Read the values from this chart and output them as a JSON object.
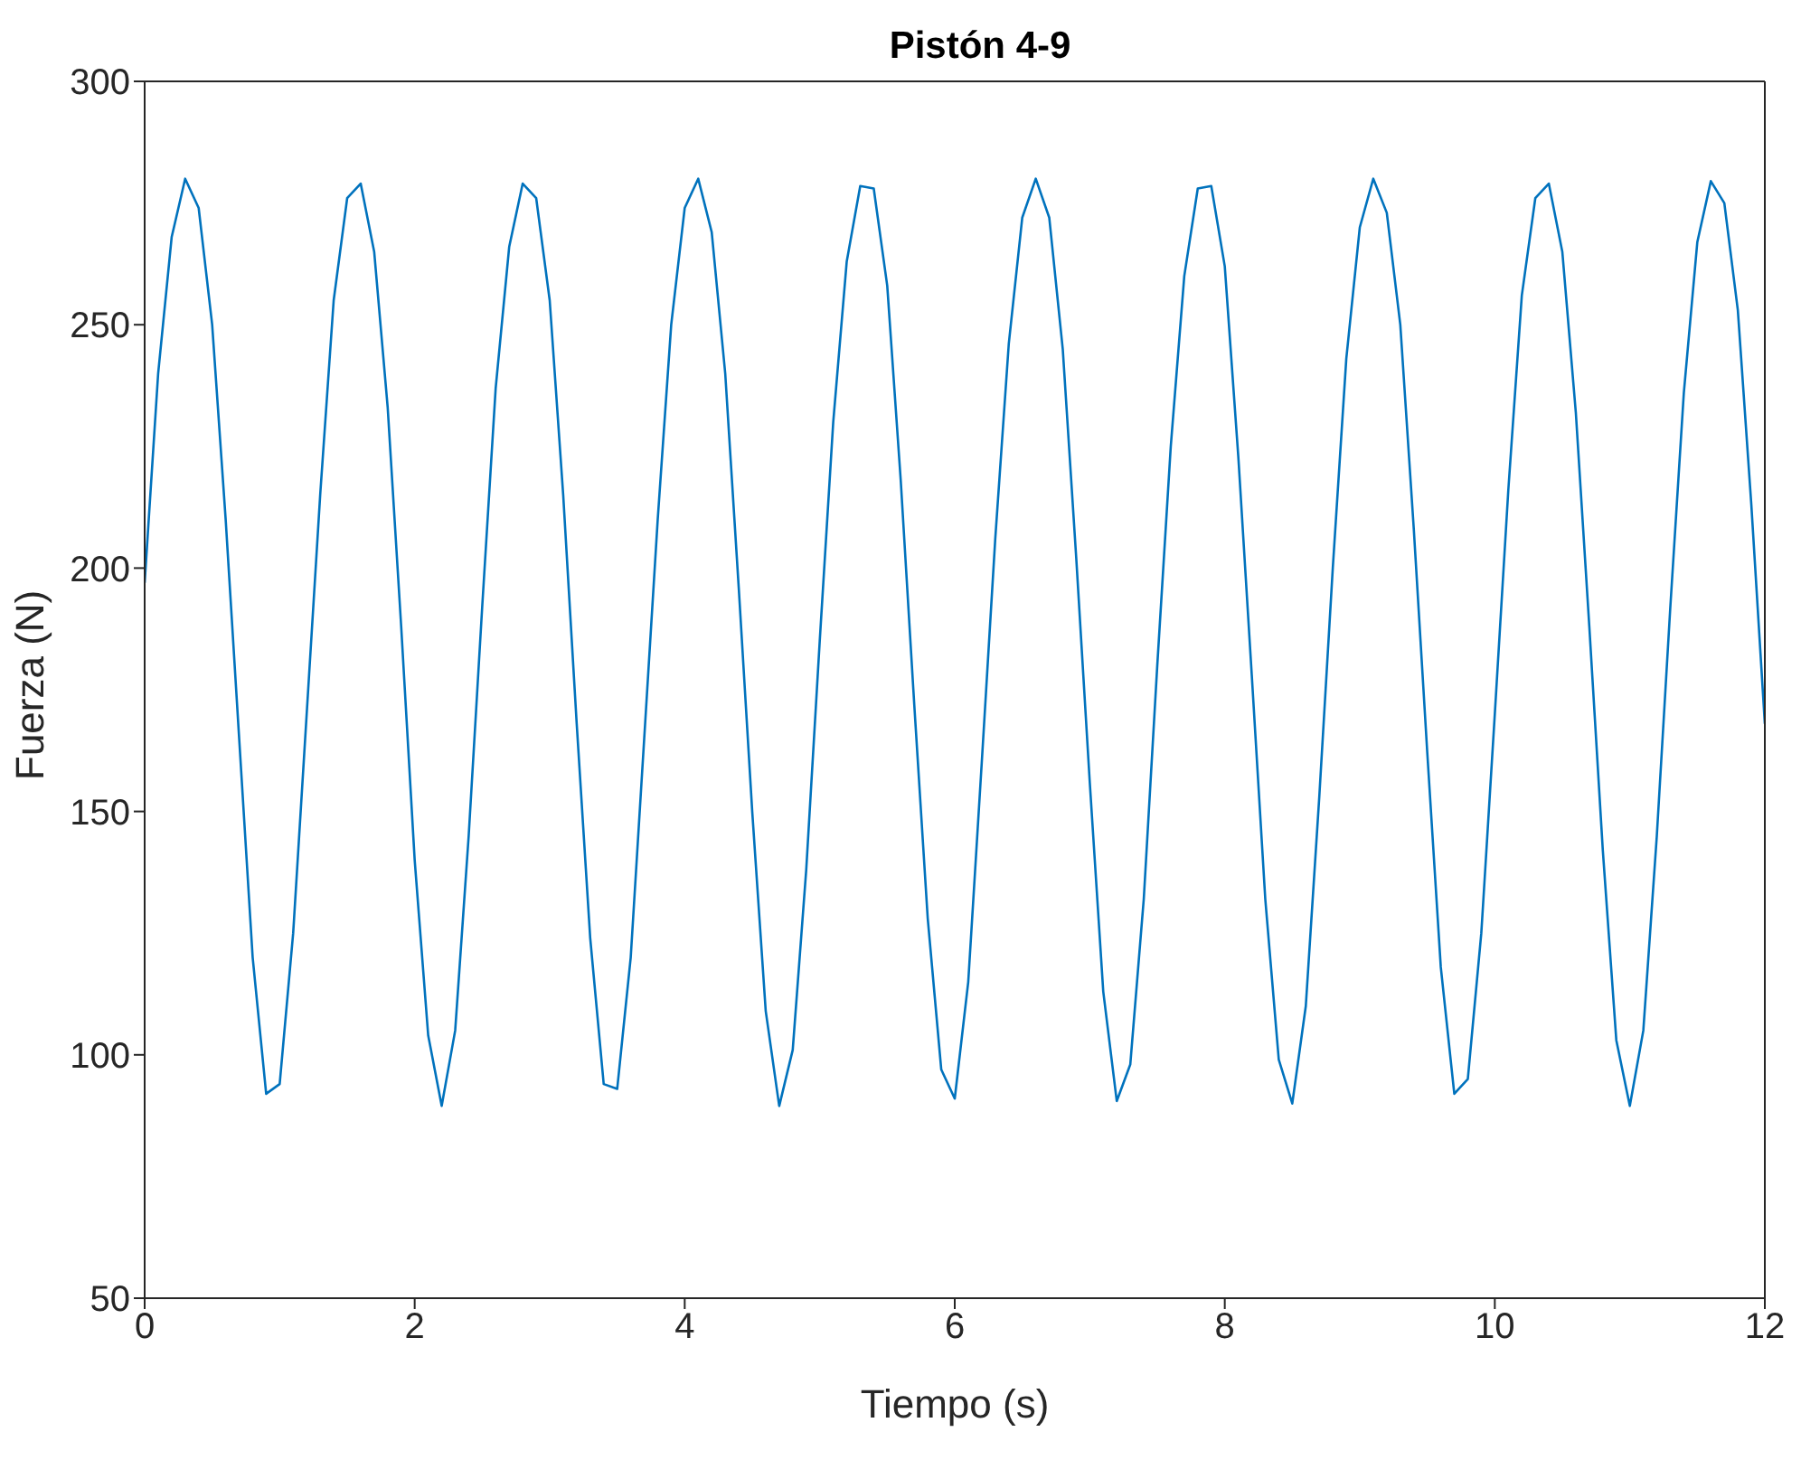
{
  "chart_data": {
    "type": "line",
    "title": "Pistón 4-9",
    "xlabel": "Tiempo (s)",
    "ylabel": "Fuerza (N)",
    "x": [
      0,
      0.1,
      0.2,
      0.3,
      0.4,
      0.5,
      0.6,
      0.7,
      0.8,
      0.9,
      1,
      1.1,
      1.2,
      1.3,
      1.4,
      1.5,
      1.6,
      1.7,
      1.8,
      1.9,
      2,
      2.1,
      2.2,
      2.3,
      2.4,
      2.5,
      2.6,
      2.7,
      2.8,
      2.9,
      3,
      3.1,
      3.2,
      3.3,
      3.4,
      3.5,
      3.6,
      3.7,
      3.8,
      3.9,
      4,
      4.1,
      4.2,
      4.3,
      4.4,
      4.5,
      4.6,
      4.7,
      4.8,
      4.9,
      5,
      5.1,
      5.2,
      5.3,
      5.4,
      5.5,
      5.6,
      5.7,
      5.8,
      5.9,
      6,
      6.1,
      6.2,
      6.3,
      6.4,
      6.5,
      6.6,
      6.7,
      6.8,
      6.9,
      7,
      7.1,
      7.2,
      7.3,
      7.4,
      7.5,
      7.6,
      7.7,
      7.8,
      7.9,
      8,
      8.1,
      8.2,
      8.3,
      8.4,
      8.5,
      8.6,
      8.7,
      8.8,
      8.9,
      9,
      9.1,
      9.2,
      9.3,
      9.4,
      9.5,
      9.6,
      9.7,
      9.8,
      9.9,
      10,
      10.1,
      10.2,
      10.3,
      10.4,
      10.5,
      10.6,
      10.7,
      10.8,
      10.9,
      11,
      11.1,
      11.2,
      11.3,
      11.4,
      11.5,
      11.6,
      11.7,
      11.8,
      11.9,
      12
    ],
    "series": [
      {
        "color": "#0072bd",
        "values": [
          197,
          240,
          268,
          280,
          274,
          250,
          210,
          165,
          120,
          92,
          94,
          125,
          170,
          215,
          255,
          276,
          279,
          265,
          233,
          188,
          140,
          104,
          89.5,
          105,
          145,
          192,
          237,
          266,
          279,
          276,
          255,
          215,
          168,
          124,
          94,
          93,
          120,
          165,
          210,
          250,
          274,
          280,
          269,
          240,
          196,
          150,
          109,
          89.5,
          101,
          138,
          185,
          230,
          263,
          278.5,
          278,
          258,
          218,
          172,
          128,
          97,
          91,
          115,
          160,
          206,
          246,
          272,
          280,
          272,
          245,
          202,
          156,
          113,
          90.5,
          98,
          132,
          180,
          225,
          260,
          278,
          278.5,
          262,
          223,
          178,
          132,
          99,
          90,
          110,
          153,
          200,
          243,
          270,
          280,
          273,
          250,
          208,
          162,
          118,
          92,
          95,
          125,
          170,
          216,
          256,
          276,
          279,
          265,
          232,
          188,
          142,
          103,
          89.5,
          105,
          145,
          192,
          236,
          267,
          279.5,
          275,
          253,
          213,
          168
        ]
      }
    ],
    "xlim": [
      0,
      12
    ],
    "xticks": [
      0,
      2,
      4,
      6,
      8,
      10,
      12
    ],
    "ylim": [
      50,
      300
    ],
    "yticks": [
      50,
      100,
      150,
      200,
      250,
      300
    ],
    "grid": false,
    "legend": false,
    "marker": "none",
    "line_style": "solid"
  }
}
